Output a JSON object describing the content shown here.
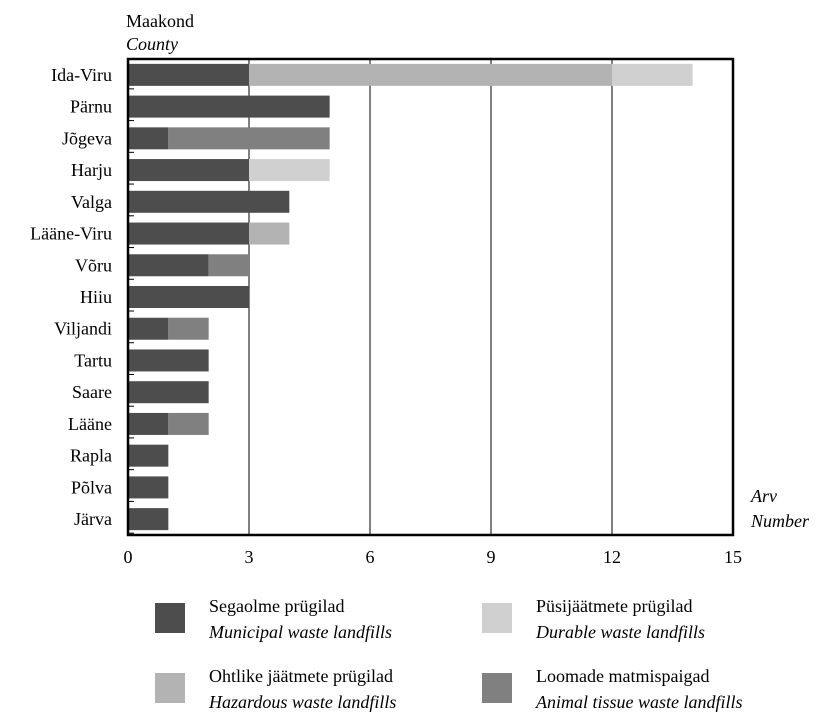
{
  "chart_data": {
    "type": "bar",
    "orientation": "horizontal",
    "stacked": true,
    "ylabel_et": "Maakond",
    "ylabel_en": "County",
    "xlabel_et": "Arv",
    "xlabel_en": "Number",
    "xlim": [
      0,
      15
    ],
    "xticks": [
      "0",
      "3",
      "6",
      "9",
      "12",
      "15"
    ],
    "grid": "vertical",
    "legend_position": "bottom",
    "categories": [
      "Ida-Viru",
      "Pärnu",
      "Jõgeva",
      "Harju",
      "Valga",
      "Lääne-Viru",
      "Võru",
      "Hiiu",
      "Viljandi",
      "Tartu",
      "Saare",
      "Lääne",
      "Rapla",
      "Põlva",
      "Järva"
    ],
    "series": [
      {
        "name_et": "Segaolme prügilad",
        "name_en": "Municipal waste landfills",
        "color": "#4d4d4d",
        "values": [
          3,
          5,
          1,
          3,
          4,
          3,
          2,
          3,
          1,
          2,
          2,
          1,
          1,
          1,
          1
        ]
      },
      {
        "name_et": "Ohtlike jäätmete prügilad",
        "name_en": "Hazardous waste landfills",
        "color": "#b3b3b3",
        "values": [
          9,
          0,
          0,
          0,
          0,
          1,
          0,
          0,
          0,
          0,
          0,
          0,
          0,
          0,
          0
        ]
      },
      {
        "name_et": "Loomade matmispaigad",
        "name_en": "Animal tissue waste landfills",
        "color": "#808080",
        "values": [
          0,
          0,
          4,
          0,
          0,
          0,
          1,
          0,
          1,
          0,
          0,
          1,
          0,
          0,
          0
        ]
      },
      {
        "name_et": "Püsijäätmete prügilad",
        "name_en": "Durable waste landfills",
        "color": "#d0d0d0",
        "values": [
          2,
          0,
          0,
          2,
          0,
          0,
          0,
          0,
          0,
          0,
          0,
          0,
          0,
          0,
          0
        ]
      }
    ]
  }
}
